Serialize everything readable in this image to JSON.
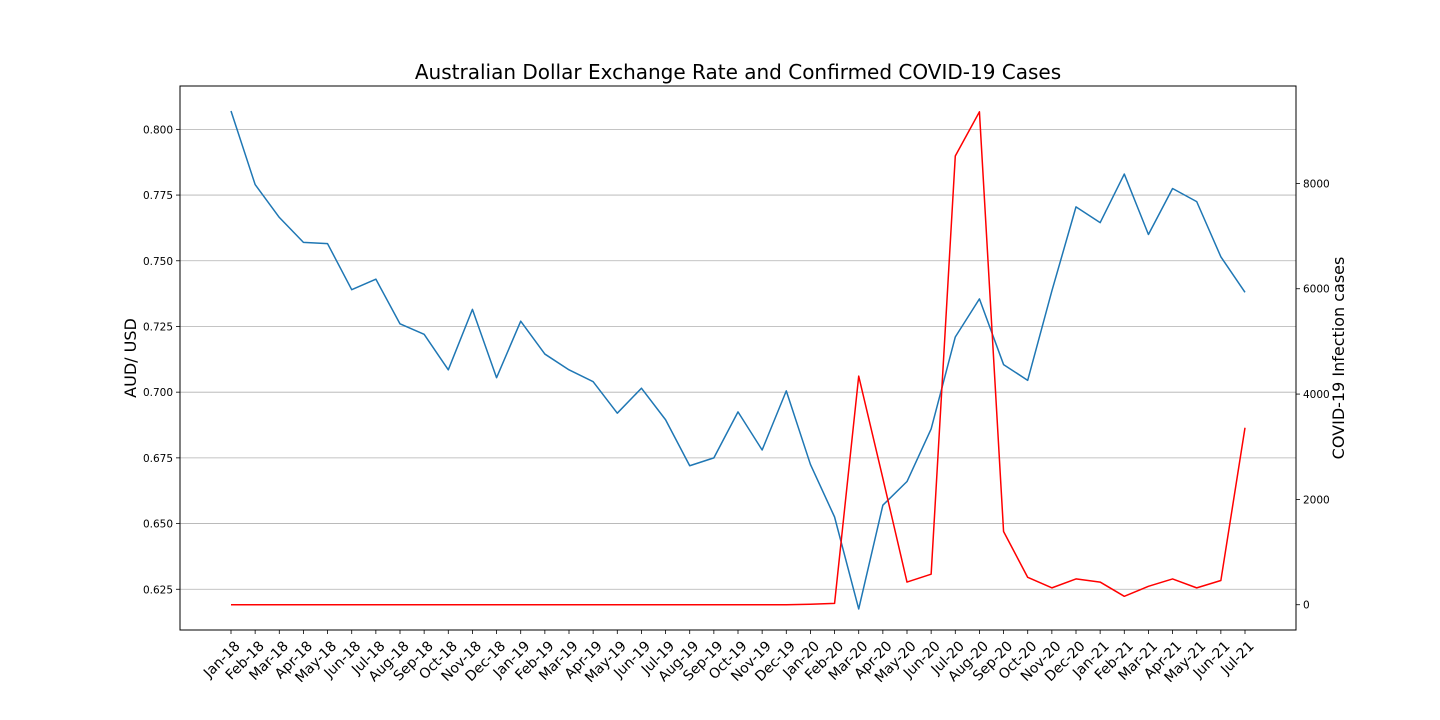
{
  "chart_data": {
    "type": "line",
    "title": "Australian Dollar Exchange Rate and Confirmed COVID-19 Cases",
    "ylabel": "AUD/ USD",
    "y2label": "COVID-19 Infection cases",
    "xlabel": "",
    "categories": [
      "Jan-18",
      "Feb-18",
      "Mar-18",
      "Apr-18",
      "May-18",
      "Jun-18",
      "Jul-18",
      "Aug-18",
      "Sep-18",
      "Oct-18",
      "Nov-18",
      "Dec-18",
      "Jan-19",
      "Feb-19",
      "Mar-19",
      "Apr-19",
      "May-19",
      "Jun-19",
      "Jul-19",
      "Aug-19",
      "Sep-19",
      "Oct-19",
      "Nov-19",
      "Dec-19",
      "Jan-20",
      "Feb-20",
      "Mar-20",
      "Apr-20",
      "May-20",
      "Jun-20",
      "Jul-20",
      "Aug-20",
      "Sep-20",
      "Oct-20",
      "Nov-20",
      "Dec-20",
      "Jan-21",
      "Feb-21",
      "Mar-21",
      "Apr-21",
      "May-21",
      "Jun-21",
      "Jul-21"
    ],
    "ylim": [
      0.6095,
      0.8165
    ],
    "yticks": [
      "0.625",
      "0.650",
      "0.675",
      "0.700",
      "0.725",
      "0.750",
      "0.775",
      "0.800"
    ],
    "y2lim": [
      -480,
      9850
    ],
    "y2ticks": [
      "0",
      "2000",
      "4000",
      "6000",
      "8000"
    ],
    "grid": "horizontal",
    "series": [
      {
        "axis": "left",
        "color": "#1f77b4",
        "values": [
          0.807,
          0.779,
          0.7665,
          0.757,
          0.7565,
          0.739,
          0.743,
          0.726,
          0.722,
          0.7085,
          0.7315,
          0.7055,
          0.727,
          0.7145,
          0.7085,
          0.704,
          0.692,
          0.7015,
          0.6895,
          0.672,
          0.675,
          0.6925,
          0.678,
          0.7005,
          0.6725,
          0.6525,
          0.6175,
          0.657,
          0.666,
          0.686,
          0.721,
          0.7355,
          0.7105,
          0.7045,
          0.7385,
          0.7705,
          0.7645,
          0.783,
          0.76,
          0.7775,
          0.7725,
          0.7515,
          0.738
        ]
      },
      {
        "axis": "right",
        "color": "#ff0000",
        "values": [
          0,
          0,
          0,
          0,
          0,
          0,
          0,
          0,
          0,
          0,
          0,
          0,
          0,
          0,
          0,
          0,
          0,
          0,
          0,
          0,
          0,
          0,
          0,
          0,
          10,
          25,
          4340,
          2400,
          430,
          580,
          8520,
          9360,
          1390,
          520,
          320,
          490,
          430,
          160,
          350,
          490,
          320,
          460,
          3360
        ]
      }
    ]
  }
}
